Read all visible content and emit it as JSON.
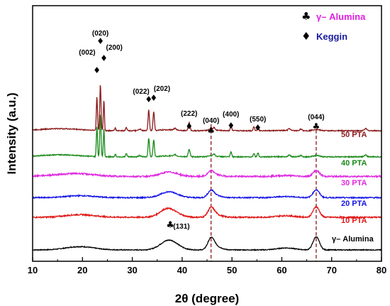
{
  "chart_data": {
    "type": "line",
    "xlabel": "2θ (degree)",
    "ylabel": "Intensity (a.u.)",
    "xlim": [
      10,
      80
    ],
    "xticks": [
      10,
      20,
      30,
      40,
      50,
      60,
      70,
      80
    ],
    "y_ticks_shown": false,
    "reference_lines": [
      45.8,
      66.9
    ],
    "legend": {
      "placement": "top-right",
      "items": [
        {
          "symbol": "♣",
          "label": "γ– Alumina",
          "color": "#e020e0"
        },
        {
          "symbol": "♦",
          "label": "Keggin",
          "color": "#1a1aa0"
        }
      ]
    },
    "series": [
      {
        "name": "γ– Alumina",
        "color": "#000000",
        "offset": 0.0
      },
      {
        "name": "10 PTA",
        "color": "#e01818",
        "offset": 1.0
      },
      {
        "name": "20 PTA",
        "color": "#1414e6",
        "offset": 1.6
      },
      {
        "name": "30 PTA",
        "color": "#e028e0",
        "offset": 2.25
      },
      {
        "name": "40 PTA",
        "color": "#1a8a1a",
        "offset": 2.85
      },
      {
        "name": "50 PTA",
        "color": "#8b1a1a",
        "offset": 3.65
      }
    ],
    "annotations": [
      {
        "label": "(002)",
        "x": 22.9,
        "marker": "♦"
      },
      {
        "label": "(020)",
        "x": 23.6,
        "marker": "♦"
      },
      {
        "label": "(200)",
        "x": 24.3,
        "marker": "♦"
      },
      {
        "label": "(022)",
        "x": 33.3,
        "marker": "♦"
      },
      {
        "label": "(202)",
        "x": 34.3,
        "marker": "♦"
      },
      {
        "label": "(222)",
        "x": 41.4,
        "marker": "♦"
      },
      {
        "label": "(040)",
        "x": 45.8,
        "marker": "♣"
      },
      {
        "label": "(400)",
        "x": 49.8,
        "marker": "♦"
      },
      {
        "label": "(550)",
        "x": 55.2,
        "marker": "♦"
      },
      {
        "label": "(044)",
        "x": 66.9,
        "marker": "♣"
      },
      {
        "label": "(131)",
        "x": 37.5,
        "marker": "♣"
      }
    ]
  }
}
